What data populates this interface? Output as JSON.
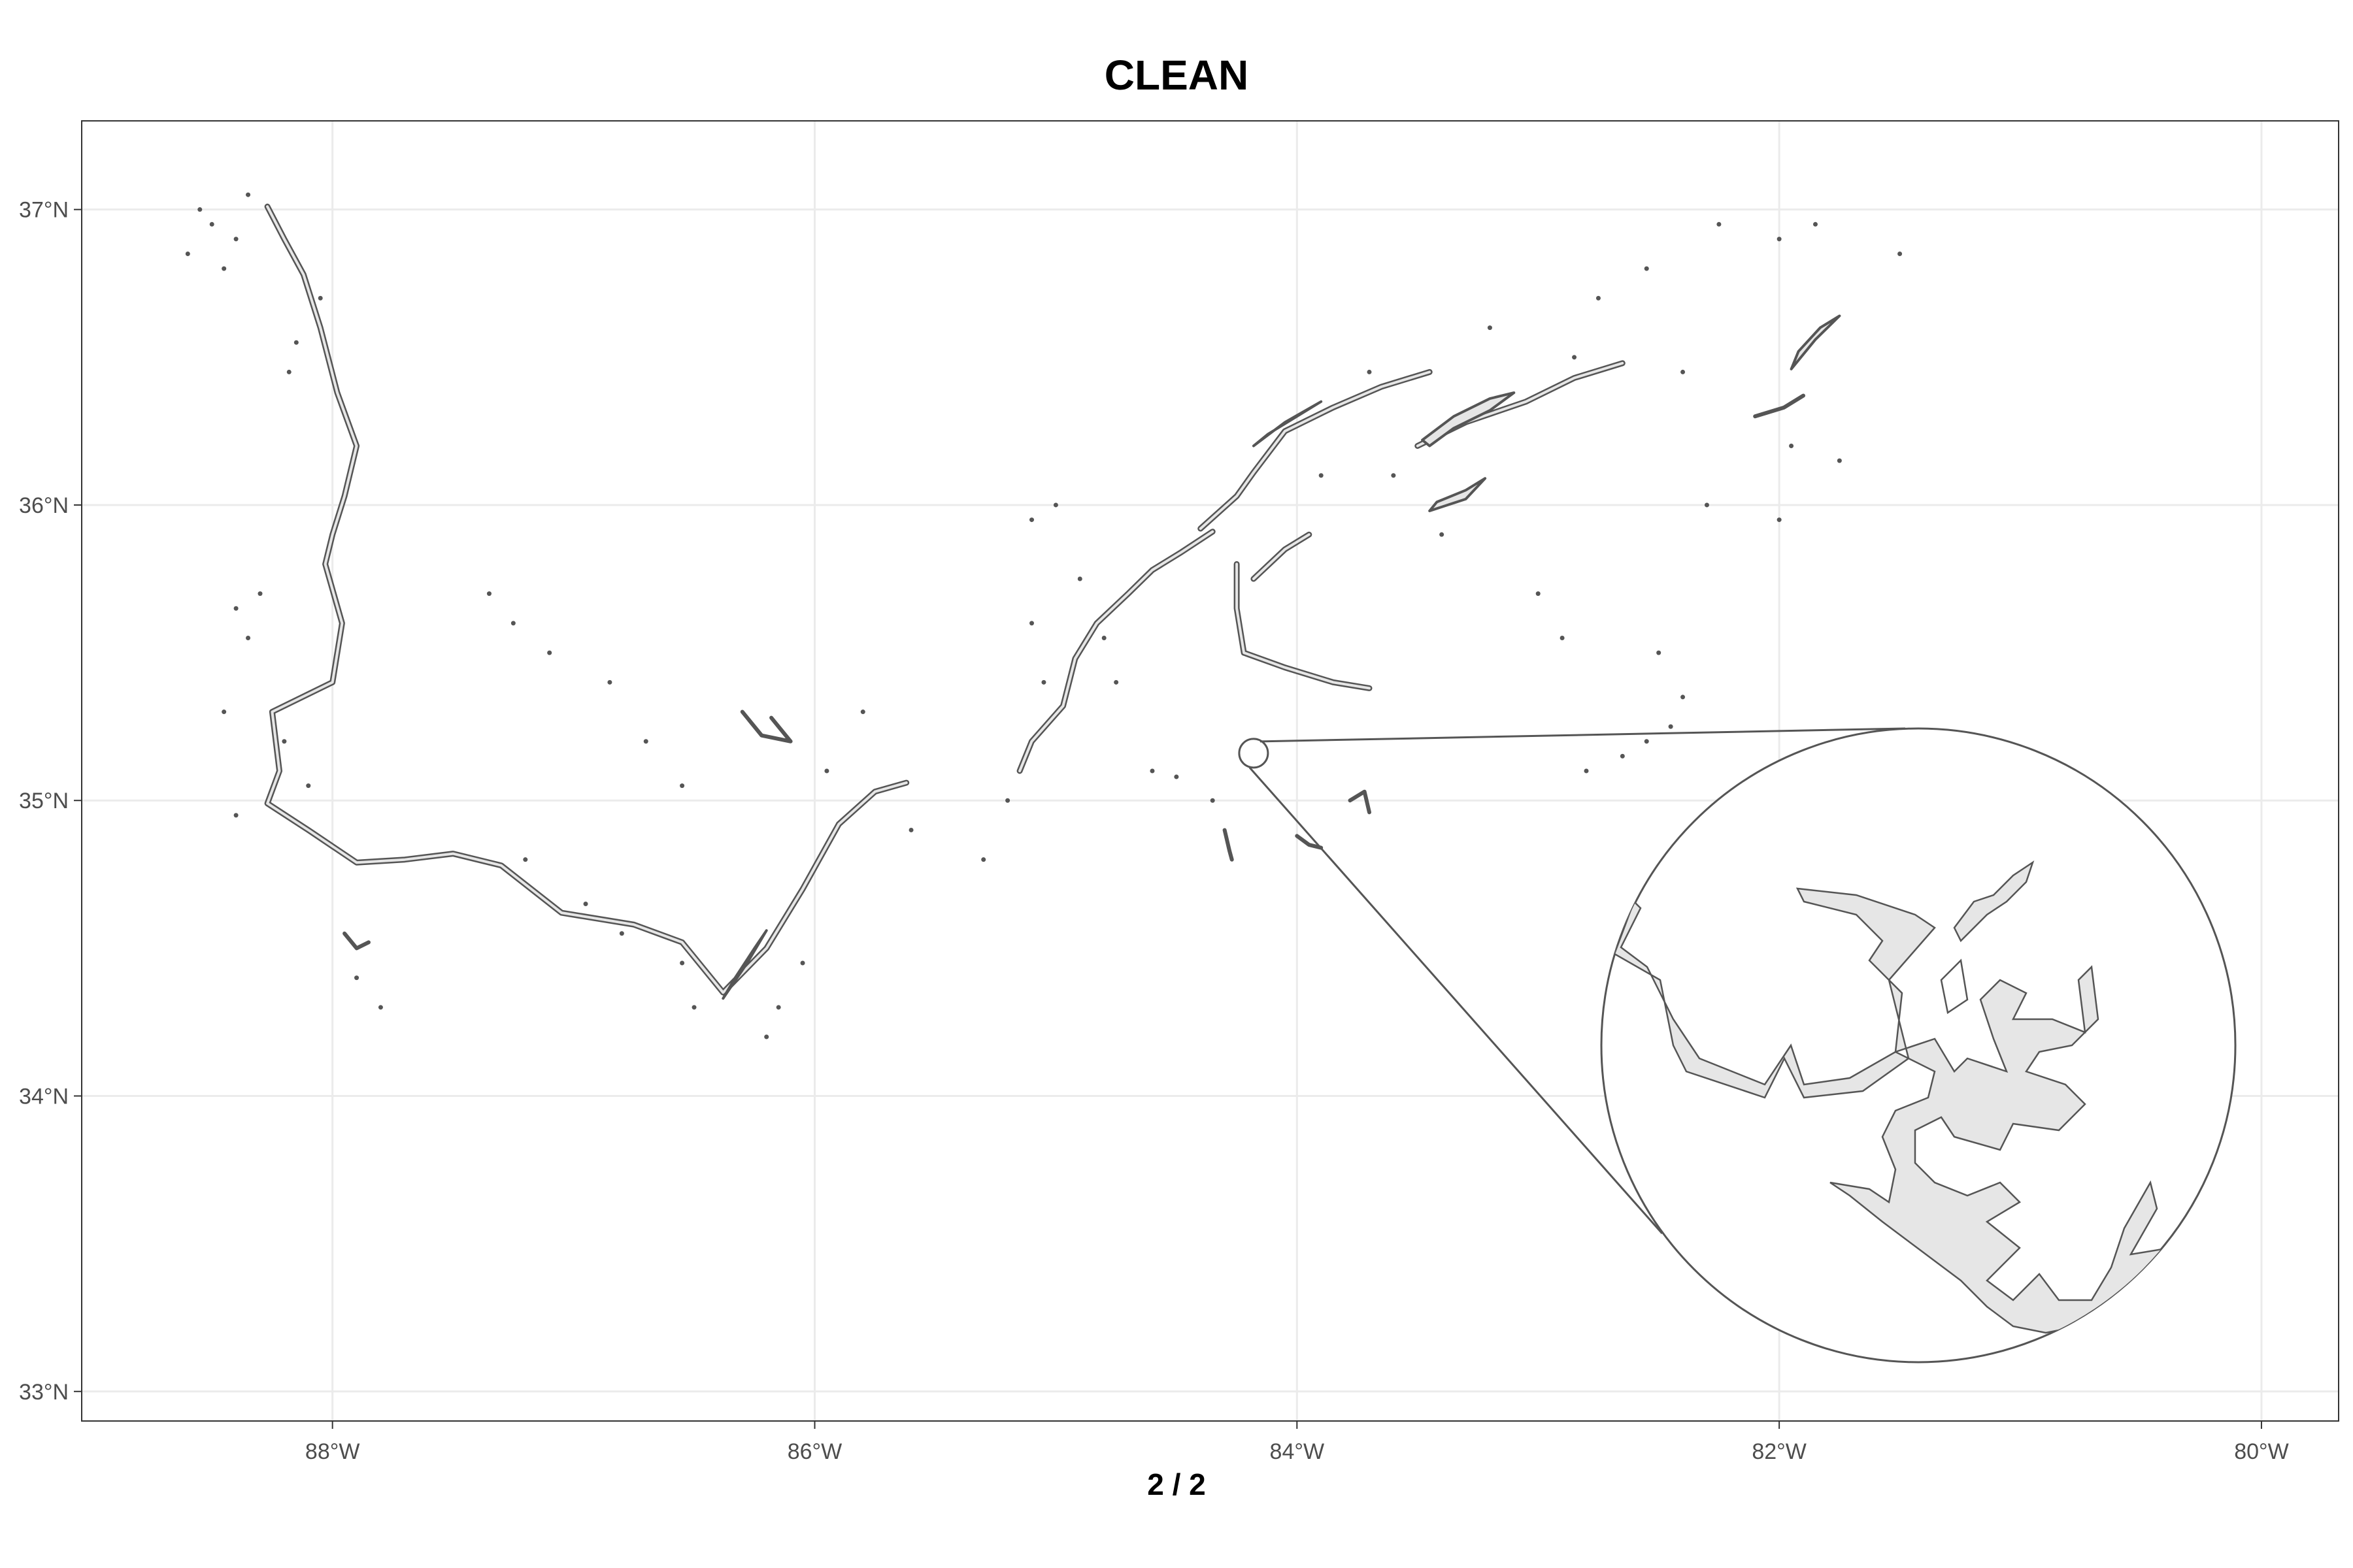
{
  "title": "CLEAN",
  "x_axis_title": "2 / 2",
  "map": {
    "projection": "longitude-latitude",
    "lon_range": [
      -89.04,
      -79.68
    ],
    "lat_range": [
      32.9,
      37.3
    ],
    "lon_ticks": [
      {
        "value": -88,
        "label": "88°W"
      },
      {
        "value": -86,
        "label": "86°W"
      },
      {
        "value": -84,
        "label": "84°W"
      },
      {
        "value": -82,
        "label": "82°W"
      },
      {
        "value": -80,
        "label": "80°W"
      }
    ],
    "lat_ticks": [
      {
        "value": 37,
        "label": "37°N"
      },
      {
        "value": 36,
        "label": "36°N"
      },
      {
        "value": 35,
        "label": "35°N"
      },
      {
        "value": 34,
        "label": "34°N"
      },
      {
        "value": 33,
        "label": "33°N"
      }
    ],
    "grid": true,
    "colors": {
      "outline": "#555555",
      "fill": "#e6e6e6",
      "grid": "#ebebeb",
      "panel_border": "#333333",
      "tick_label": "#4d4d4d"
    },
    "magnifier": {
      "source_center": {
        "lon": -84.18,
        "lat": 35.16
      },
      "zoom_center": {
        "lon": -81.45,
        "lat": 34.16
      },
      "zoom_factor": 22
    },
    "features": {
      "rivers": [
        {
          "name": "tennessee-river-kentucky",
          "points": [
            [
              -88.27,
              37.01
            ],
            [
              -88.2,
              36.9
            ],
            [
              -88.12,
              36.78
            ],
            [
              -88.05,
              36.6
            ],
            [
              -87.98,
              36.38
            ],
            [
              -87.9,
              36.2
            ],
            [
              -87.95,
              36.03
            ],
            [
              -88.0,
              35.9
            ],
            [
              -88.03,
              35.8
            ],
            [
              -87.96,
              35.6
            ],
            [
              -88.0,
              35.4
            ],
            [
              -88.25,
              35.3
            ],
            [
              -88.22,
              35.1
            ],
            [
              -88.27,
              34.99
            ],
            [
              -88.1,
              34.9
            ],
            [
              -87.9,
              34.79
            ],
            [
              -87.7,
              34.8
            ],
            [
              -87.5,
              34.82
            ],
            [
              -87.3,
              34.78
            ],
            [
              -87.05,
              34.62
            ],
            [
              -86.75,
              34.58
            ],
            [
              -86.55,
              34.52
            ],
            [
              -86.38,
              34.35
            ],
            [
              -86.2,
              34.5
            ],
            [
              -86.05,
              34.7
            ],
            [
              -85.9,
              34.92
            ],
            [
              -85.75,
              35.03
            ],
            [
              -85.62,
              35.06
            ]
          ]
        },
        {
          "name": "tennessee-river-upper",
          "points": [
            [
              -85.15,
              35.1
            ],
            [
              -85.1,
              35.2
            ],
            [
              -84.97,
              35.32
            ],
            [
              -84.92,
              35.48
            ],
            [
              -84.83,
              35.6
            ],
            [
              -84.7,
              35.7
            ],
            [
              -84.6,
              35.78
            ],
            [
              -84.48,
              35.84
            ],
            [
              -84.35,
              35.91
            ]
          ]
        },
        {
          "name": "clinch-river",
          "points": [
            [
              -84.4,
              35.92
            ],
            [
              -84.25,
              36.03
            ],
            [
              -84.18,
              36.11
            ],
            [
              -84.05,
              36.25
            ],
            [
              -83.85,
              36.33
            ],
            [
              -83.65,
              36.4
            ],
            [
              -83.45,
              36.45
            ]
          ]
        },
        {
          "name": "holston-river",
          "points": [
            [
              -83.5,
              36.2
            ],
            [
              -83.3,
              36.28
            ],
            [
              -83.05,
              36.35
            ],
            [
              -82.85,
              36.43
            ],
            [
              -82.65,
              36.48
            ]
          ]
        },
        {
          "name": "little-tennessee-river",
          "points": [
            [
              -84.25,
              35.8
            ],
            [
              -84.25,
              35.65
            ],
            [
              -84.22,
              35.5
            ],
            [
              -84.05,
              35.45
            ],
            [
              -83.85,
              35.4
            ],
            [
              -83.7,
              35.38
            ]
          ]
        },
        {
          "name": "french-broad-river",
          "points": [
            [
              -84.18,
              35.75
            ],
            [
              -84.05,
              35.85
            ],
            [
              -83.95,
              35.9
            ]
          ]
        }
      ],
      "reservoirs": [
        {
          "name": "cherokee-lake",
          "points": [
            [
              -83.48,
              36.22
            ],
            [
              -83.35,
              36.3
            ],
            [
              -83.2,
              36.36
            ],
            [
              -83.1,
              36.38
            ],
            [
              -83.2,
              36.32
            ],
            [
              -83.35,
              36.26
            ],
            [
              -83.45,
              36.2
            ]
          ]
        },
        {
          "name": "douglas-lake",
          "points": [
            [
              -83.45,
              35.98
            ],
            [
              -83.3,
              36.02
            ],
            [
              -83.22,
              36.09
            ],
            [
              -83.3,
              36.05
            ],
            [
              -83.42,
              36.01
            ]
          ]
        },
        {
          "name": "south-holston-lake",
          "points": [
            [
              -81.95,
              36.46
            ],
            [
              -81.85,
              36.56
            ],
            [
              -81.75,
              36.64
            ],
            [
              -81.83,
              36.6
            ],
            [
              -81.92,
              36.52
            ]
          ]
        },
        {
          "name": "lake-guntersville",
          "points": [
            [
              -86.38,
              34.33
            ],
            [
              -86.28,
              34.45
            ],
            [
              -86.2,
              34.56
            ],
            [
              -86.25,
              34.5
            ],
            [
              -86.33,
              34.4
            ]
          ]
        },
        {
          "name": "reservoir-norris",
          "points": [
            [
              -84.18,
              36.2
            ],
            [
              -84.05,
              36.28
            ],
            [
              -83.9,
              36.35
            ],
            [
              -84.0,
              36.3
            ],
            [
              -84.12,
              36.24
            ]
          ]
        }
      ],
      "lakes": [
        {
          "name": "tims-ford-cluster",
          "points": [
            [
              -86.3,
              35.3
            ],
            [
              -86.22,
              35.22
            ],
            [
              -86.1,
              35.2
            ],
            [
              -86.18,
              35.28
            ]
          ]
        },
        {
          "name": "watauga-cluster",
          "points": [
            [
              -82.1,
              36.3
            ],
            [
              -81.98,
              36.33
            ],
            [
              -81.9,
              36.37
            ]
          ]
        },
        {
          "name": "chatuge-lake",
          "points": [
            [
              -83.78,
              35.0
            ],
            [
              -83.72,
              35.03
            ],
            [
              -83.7,
              34.96
            ]
          ]
        },
        {
          "name": "nottely-lake",
          "points": [
            [
              -84.0,
              34.88
            ],
            [
              -83.95,
              34.85
            ],
            [
              -83.9,
              34.84
            ]
          ]
        },
        {
          "name": "blue-ridge-lake",
          "points": [
            [
              -84.3,
              34.9
            ],
            [
              -84.28,
              34.83
            ],
            [
              -84.27,
              34.8
            ]
          ]
        },
        {
          "name": "pickwick-cluster",
          "points": [
            [
              -87.95,
              34.55
            ],
            [
              -87.9,
              34.5
            ],
            [
              -87.85,
              34.52
            ]
          ]
        }
      ],
      "small_ponds": [
        [
          -88.55,
          37.0
        ],
        [
          -88.5,
          36.95
        ],
        [
          -88.4,
          36.9
        ],
        [
          -88.6,
          36.85
        ],
        [
          -88.45,
          36.8
        ],
        [
          -88.35,
          37.05
        ],
        [
          -88.15,
          36.55
        ],
        [
          -88.05,
          36.7
        ],
        [
          -88.18,
          36.45
        ],
        [
          -88.3,
          35.7
        ],
        [
          -88.35,
          35.55
        ],
        [
          -88.4,
          35.65
        ],
        [
          -88.2,
          35.2
        ],
        [
          -88.1,
          35.05
        ],
        [
          -88.45,
          35.3
        ],
        [
          -88.4,
          34.95
        ],
        [
          -87.9,
          34.4
        ],
        [
          -87.8,
          34.3
        ],
        [
          -87.35,
          35.7
        ],
        [
          -87.25,
          35.6
        ],
        [
          -87.1,
          35.5
        ],
        [
          -86.85,
          35.4
        ],
        [
          -86.7,
          35.2
        ],
        [
          -86.55,
          35.05
        ],
        [
          -87.2,
          34.8
        ],
        [
          -86.95,
          34.65
        ],
        [
          -86.8,
          34.55
        ],
        [
          -86.55,
          34.45
        ],
        [
          -86.5,
          34.3
        ],
        [
          -86.2,
          34.2
        ],
        [
          -86.15,
          34.3
        ],
        [
          -86.05,
          34.45
        ],
        [
          -85.8,
          35.3
        ],
        [
          -85.95,
          35.1
        ],
        [
          -85.6,
          34.9
        ],
        [
          -85.3,
          34.8
        ],
        [
          -85.2,
          35.0
        ],
        [
          -85.05,
          35.4
        ],
        [
          -85.1,
          35.95
        ],
        [
          -85.0,
          36.0
        ],
        [
          -84.9,
          35.75
        ],
        [
          -84.8,
          35.55
        ],
        [
          -84.75,
          35.4
        ],
        [
          -84.6,
          35.1
        ],
        [
          -84.5,
          35.08
        ],
        [
          -84.35,
          35.0
        ],
        [
          -83.6,
          36.1
        ],
        [
          -83.4,
          35.9
        ],
        [
          -83.0,
          35.7
        ],
        [
          -82.9,
          35.55
        ],
        [
          -82.8,
          35.1
        ],
        [
          -82.65,
          35.15
        ],
        [
          -82.55,
          35.2
        ],
        [
          -82.45,
          35.25
        ],
        [
          -82.4,
          35.35
        ],
        [
          -82.5,
          35.5
        ],
        [
          -82.3,
          36.0
        ],
        [
          -82.0,
          35.95
        ],
        [
          -81.95,
          36.2
        ],
        [
          -81.75,
          36.15
        ],
        [
          -82.75,
          36.7
        ],
        [
          -82.55,
          36.8
        ],
        [
          -82.25,
          36.95
        ],
        [
          -82.0,
          36.9
        ],
        [
          -81.85,
          36.95
        ],
        [
          -81.5,
          36.85
        ],
        [
          -82.85,
          36.5
        ],
        [
          -82.4,
          36.45
        ],
        [
          -83.2,
          36.6
        ],
        [
          -83.7,
          36.45
        ],
        [
          -83.9,
          36.1
        ],
        [
          -85.1,
          35.6
        ]
      ]
    }
  }
}
